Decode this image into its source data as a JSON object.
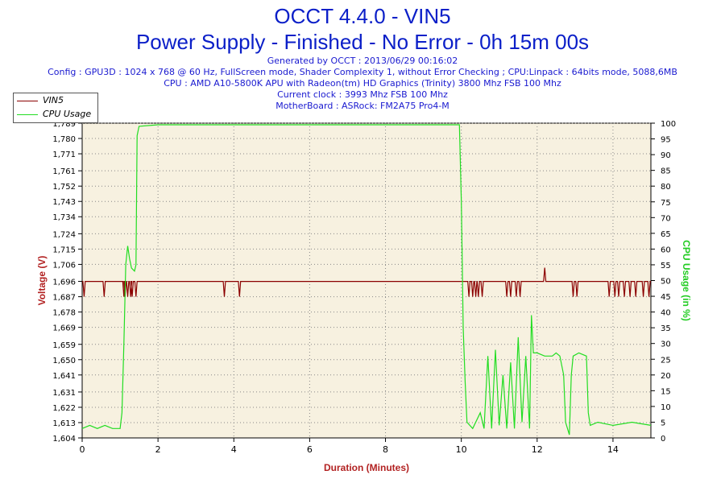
{
  "header": {
    "title": "OCCT 4.4.0 - VIN5",
    "subtitle": "Power Supply - Finished - No Error - 0h 15m 00s",
    "info": [
      "Generated by OCCT : 2013/06/29 00:16:02",
      "Config : GPU3D : 1024 x 768 @ 60 Hz, FullScreen mode, Shader Complexity 1, without Error Checking ; CPU:Linpack : 64bits mode, 5088,6MB",
      "CPU : AMD A10-5800K APU with Radeon(tm) HD Graphics (Trinity) 3800 Mhz FSB 100 Mhz",
      "Current clock : 3993 Mhz FSB 100 Mhz",
      "MotherBoard : ASRock: FM2A75 Pro4-M"
    ]
  },
  "chart_data": {
    "type": "line",
    "xlabel": "Duration (Minutes)",
    "ylabel_left": "Voltage (V)",
    "ylabel_right": "CPU Usage (in %)",
    "xlim": [
      0,
      15
    ],
    "ylim_left": [
      1.604,
      1.789
    ],
    "ylim_right": [
      0,
      100
    ],
    "x_ticks": [
      "0",
      "2",
      "4",
      "6",
      "8",
      "10",
      "12",
      "14"
    ],
    "y_left_ticks": [
      "1,604",
      "1,613",
      "1,622",
      "1,631",
      "1,641",
      "1,650",
      "1,659",
      "1,669",
      "1,678",
      "1,687",
      "1,696",
      "1,706",
      "1,715",
      "1,724",
      "1,734",
      "1,743",
      "1,752",
      "1,761",
      "1,771",
      "1,780",
      "1,789"
    ],
    "y_right_ticks": [
      "0",
      "5",
      "10",
      "15",
      "20",
      "25",
      "30",
      "35",
      "40",
      "45",
      "50",
      "55",
      "60",
      "65",
      "70",
      "75",
      "80",
      "85",
      "90",
      "95",
      "100"
    ],
    "grid": true,
    "legend_position": "top-left",
    "colors": {
      "vin5": "#8b0000",
      "cpu": "#22dd22",
      "plot_bg": "#f7f1e0",
      "title": "#0b1fc8"
    },
    "series": [
      {
        "name": "VIN5",
        "base": 1.696,
        "dips_to": 1.687,
        "dip_times": [
          0.05,
          0.58,
          1.1,
          1.13,
          1.2,
          1.28,
          1.32,
          1.42,
          3.75,
          4.15,
          10.2,
          10.3,
          10.38,
          10.45,
          10.55,
          11.2,
          11.3,
          11.45,
          11.55,
          12.95,
          13.05,
          13.9,
          14.05,
          14.15,
          14.3,
          14.45,
          14.6,
          14.8,
          14.95
        ],
        "spikes": [
          [
            12.2,
            1.704
          ]
        ],
        "points": [
          [
            0,
            1.696
          ],
          [
            15,
            1.696
          ]
        ]
      },
      {
        "name": "CPU Usage",
        "points": [
          [
            0,
            3
          ],
          [
            0.2,
            4
          ],
          [
            0.4,
            3
          ],
          [
            0.6,
            4
          ],
          [
            0.8,
            3
          ],
          [
            1.0,
            3
          ],
          [
            1.05,
            8
          ],
          [
            1.1,
            30
          ],
          [
            1.15,
            55
          ],
          [
            1.2,
            61
          ],
          [
            1.25,
            57
          ],
          [
            1.3,
            54
          ],
          [
            1.38,
            53
          ],
          [
            1.42,
            55
          ],
          [
            1.45,
            96
          ],
          [
            1.5,
            99
          ],
          [
            2,
            99.5
          ],
          [
            3,
            99.5
          ],
          [
            4,
            99.5
          ],
          [
            5,
            99.5
          ],
          [
            6,
            99.5
          ],
          [
            7,
            99.5
          ],
          [
            8,
            99.5
          ],
          [
            9,
            99.5
          ],
          [
            9.95,
            99.5
          ],
          [
            10.0,
            75
          ],
          [
            10.05,
            35
          ],
          [
            10.1,
            18
          ],
          [
            10.15,
            5
          ],
          [
            10.3,
            3
          ],
          [
            10.5,
            8
          ],
          [
            10.6,
            3
          ],
          [
            10.7,
            26
          ],
          [
            10.8,
            3
          ],
          [
            10.9,
            28
          ],
          [
            11.0,
            4
          ],
          [
            11.1,
            20
          ],
          [
            11.2,
            3
          ],
          [
            11.3,
            24
          ],
          [
            11.4,
            3
          ],
          [
            11.5,
            32
          ],
          [
            11.6,
            5
          ],
          [
            11.7,
            26
          ],
          [
            11.8,
            3
          ],
          [
            11.85,
            39
          ],
          [
            11.9,
            27
          ],
          [
            12.0,
            27
          ],
          [
            12.2,
            26
          ],
          [
            12.4,
            26
          ],
          [
            12.5,
            27
          ],
          [
            12.6,
            26
          ],
          [
            12.7,
            20
          ],
          [
            12.75,
            5
          ],
          [
            12.85,
            1
          ],
          [
            12.9,
            20
          ],
          [
            12.95,
            26
          ],
          [
            13.1,
            27
          ],
          [
            13.3,
            26
          ],
          [
            13.35,
            8
          ],
          [
            13.4,
            4
          ],
          [
            13.6,
            5
          ],
          [
            14.0,
            4
          ],
          [
            14.5,
            5
          ],
          [
            15,
            4
          ]
        ]
      }
    ]
  }
}
